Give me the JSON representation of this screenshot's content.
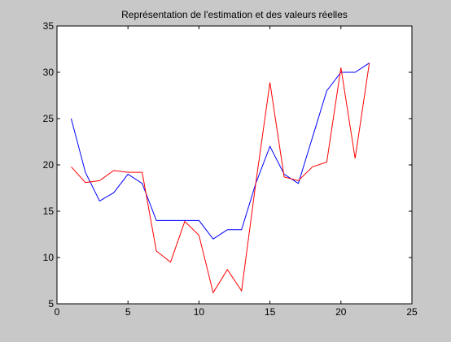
{
  "chart_data": {
    "type": "line",
    "title": "Représentation de l'estimation et des valeurs réelles",
    "xlabel": "",
    "ylabel": "",
    "xlim": [
      0,
      25
    ],
    "ylim": [
      5,
      35
    ],
    "xticks": [
      0,
      5,
      10,
      15,
      20,
      25
    ],
    "yticks": [
      5,
      10,
      15,
      20,
      25,
      30,
      35
    ],
    "grid": false,
    "legend": "none",
    "x": [
      1,
      2,
      3,
      4,
      5,
      6,
      7,
      8,
      9,
      10,
      11,
      12,
      13,
      14,
      15,
      16,
      17,
      18,
      19,
      20,
      21,
      22
    ],
    "series": [
      {
        "color": "#0000ff",
        "values": [
          25,
          19.2,
          16.1,
          17,
          19,
          18,
          14,
          14,
          14,
          14,
          12,
          13,
          13,
          18,
          22,
          19,
          18,
          23,
          28,
          30,
          30,
          31
        ]
      },
      {
        "color": "#ff0000",
        "values": [
          19.8,
          18.1,
          18.3,
          19.4,
          19.2,
          19.2,
          10.7,
          9.5,
          13.9,
          12.4,
          6.2,
          8.7,
          6.4,
          18,
          28.9,
          18.7,
          18.3,
          19.8,
          20.3,
          30.5,
          20.7,
          31
        ]
      }
    ]
  }
}
